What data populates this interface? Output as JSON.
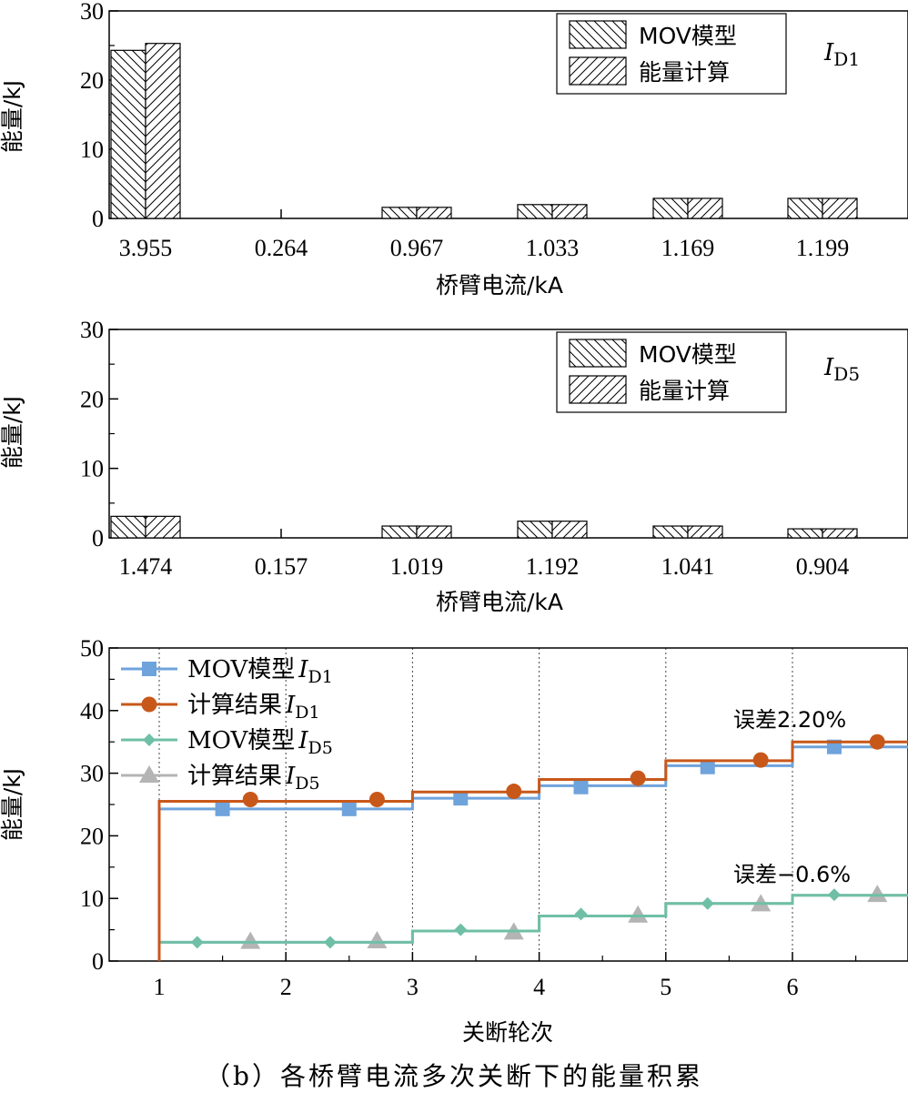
{
  "caption": "（b）各桥臂电流多次关断下的能量积累",
  "chart_data": [
    {
      "type": "bar",
      "panel_tag_main": "I",
      "panel_tag_sub": "D1",
      "categories": [
        "3.955",
        "0.264",
        "0.967",
        "1.033",
        "1.169",
        "1.199"
      ],
      "series": [
        {
          "name": "MOV模型",
          "values": [
            24.3,
            0,
            1.6,
            2.0,
            2.9,
            2.9
          ],
          "hatch": "back"
        },
        {
          "name": "能量计算",
          "values": [
            25.3,
            0,
            1.6,
            2.0,
            2.9,
            2.9
          ],
          "hatch": "fwd"
        }
      ],
      "xlabel": "桥臂电流/kA",
      "ylabel": "能量/kJ",
      "ylim": [
        0,
        30
      ],
      "yticks": [
        "0",
        "10",
        "20",
        "30"
      ],
      "legend": "top-right"
    },
    {
      "type": "bar",
      "panel_tag_main": "I",
      "panel_tag_sub": "D5",
      "categories": [
        "1.474",
        "0.157",
        "1.019",
        "1.192",
        "1.041",
        "0.904"
      ],
      "series": [
        {
          "name": "MOV模型",
          "values": [
            3.1,
            0,
            1.7,
            2.4,
            1.7,
            1.3
          ],
          "hatch": "back"
        },
        {
          "name": "能量计算",
          "values": [
            3.1,
            0,
            1.7,
            2.4,
            1.7,
            1.3
          ],
          "hatch": "fwd"
        }
      ],
      "xlabel": "桥臂电流/kA",
      "ylabel": "能量/kJ",
      "ylim": [
        0,
        30
      ],
      "yticks": [
        "0",
        "10",
        "20",
        "30"
      ],
      "legend": "top-right"
    },
    {
      "type": "line",
      "step": true,
      "xlabel": "关断轮次",
      "ylabel": "能量/kJ",
      "xlim": [
        0,
        6.9
      ],
      "ylim": [
        0,
        50
      ],
      "xticks": [
        "1",
        "2",
        "3",
        "4",
        "5",
        "6"
      ],
      "yticks": [
        "0",
        "10",
        "20",
        "30",
        "40",
        "50"
      ],
      "vgrid": [
        1,
        2,
        3,
        4,
        5,
        6
      ],
      "series": [
        {
          "name_main": "MOV模型",
          "name_sub": "D1",
          "color": "#6fa3dc",
          "marker": "square",
          "steps": [
            24.3,
            24.3,
            26.0,
            28.0,
            31.2,
            34.2
          ],
          "markers": [
            [
              1.5,
              24.3
            ],
            [
              2.5,
              24.3
            ],
            [
              3.38,
              26.0
            ],
            [
              4.33,
              27.8
            ],
            [
              5.33,
              31.0
            ],
            [
              6.33,
              34.2
            ]
          ]
        },
        {
          "name_main": "计算结果",
          "name_sub": "D1",
          "color": "#c8581a",
          "marker": "circle",
          "steps": [
            25.5,
            25.5,
            27.0,
            29.0,
            32.0,
            35.0
          ],
          "markers": [
            [
              1.72,
              25.8
            ],
            [
              2.72,
              25.8
            ],
            [
              3.8,
              27.1
            ],
            [
              4.78,
              29.2
            ],
            [
              5.75,
              32.1
            ],
            [
              6.67,
              35.0
            ]
          ]
        },
        {
          "name_main": "MOV模型",
          "name_sub": "D5",
          "color": "#6fbfa6",
          "marker": "diamond",
          "steps": [
            3.0,
            3.0,
            4.8,
            7.2,
            9.2,
            10.5
          ],
          "markers": [
            [
              1.3,
              3.0
            ],
            [
              2.35,
              3.0
            ],
            [
              3.38,
              5.0
            ],
            [
              4.33,
              7.5
            ],
            [
              5.33,
              9.2
            ],
            [
              6.33,
              10.6
            ]
          ]
        },
        {
          "name_main": "计算结果",
          "name_sub": "D5",
          "color": "#b4b4b4",
          "marker": "triangle",
          "steps": [
            3.0,
            3.0,
            4.8,
            7.2,
            9.2,
            10.5
          ],
          "markers": [
            [
              1.72,
              3.1
            ],
            [
              2.72,
              3.2
            ],
            [
              3.8,
              4.6
            ],
            [
              4.78,
              7.3
            ],
            [
              5.75,
              9.1
            ],
            [
              6.67,
              10.6
            ]
          ]
        }
      ],
      "annotations": [
        {
          "text": "误差2.20%",
          "x": 6.0,
          "y": 38.5
        },
        {
          "text": "误差−0.6%",
          "x": 6.0,
          "y": 13.8
        }
      ]
    }
  ]
}
